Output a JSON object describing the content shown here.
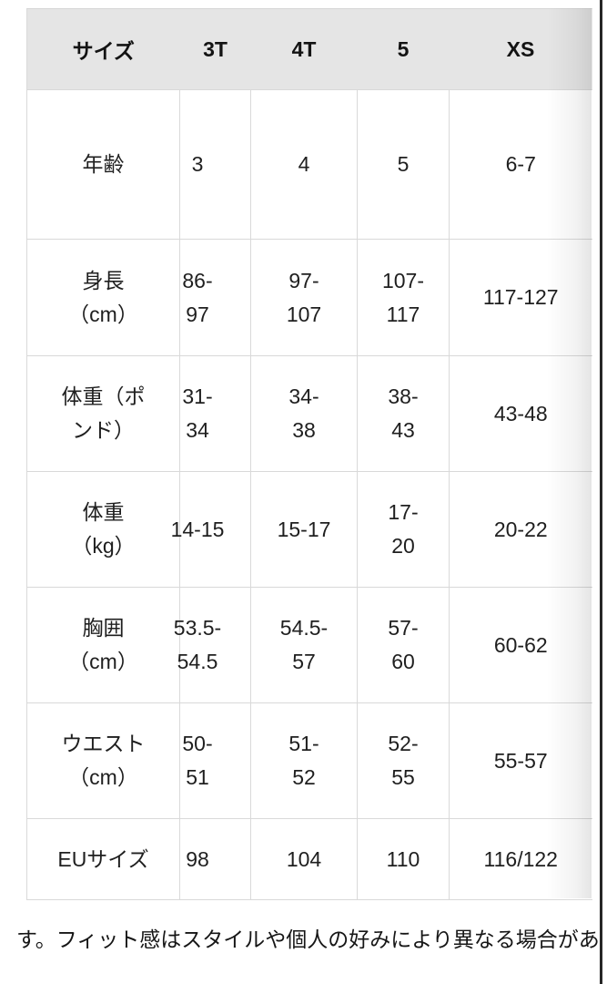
{
  "table": {
    "columns": [
      {
        "key": "label",
        "header": "サイズ"
      },
      {
        "key": "t3",
        "header": "3T"
      },
      {
        "key": "t4",
        "header": "4T"
      },
      {
        "key": "s5",
        "header": "5"
      },
      {
        "key": "xs",
        "header": "XS"
      }
    ],
    "rows": [
      {
        "label": "年齢",
        "t3": "3",
        "t4": "4",
        "s5": "5",
        "xs": "6-7"
      },
      {
        "label": "身長\n（cm）",
        "t3": "86-\n97",
        "t4": "97-\n107",
        "s5": "107-\n117",
        "xs": "117-127"
      },
      {
        "label": "体重（ポ\nンド）",
        "t3": "31-\n34",
        "t4": "34-\n38",
        "s5": "38-\n43",
        "xs": "43-48"
      },
      {
        "label": "体重\n（kg）",
        "t3": "14-15",
        "t4": "15-17",
        "s5": "17-\n20",
        "xs": "20-22"
      },
      {
        "label": "胸囲\n（cm）",
        "t3": "53.5-\n54.5",
        "t4": "54.5-\n57",
        "s5": "57-\n60",
        "xs": "60-62"
      },
      {
        "label": "ウエスト\n（cm）",
        "t3": "50-\n51",
        "t4": "51-\n52",
        "s5": "52-\n55",
        "xs": "55-57"
      },
      {
        "label": "EUサイズ",
        "t3": "98",
        "t4": "104",
        "s5": "110",
        "xs": "116/122"
      }
    ]
  },
  "footer_text": "す。フィット感はスタイルや個人の好みにより異なる場合があ",
  "colors": {
    "header_bg": "#e5e5e5",
    "border": "#d9d9d9",
    "text": "#1f1f1f",
    "edge_line": "#272727"
  }
}
